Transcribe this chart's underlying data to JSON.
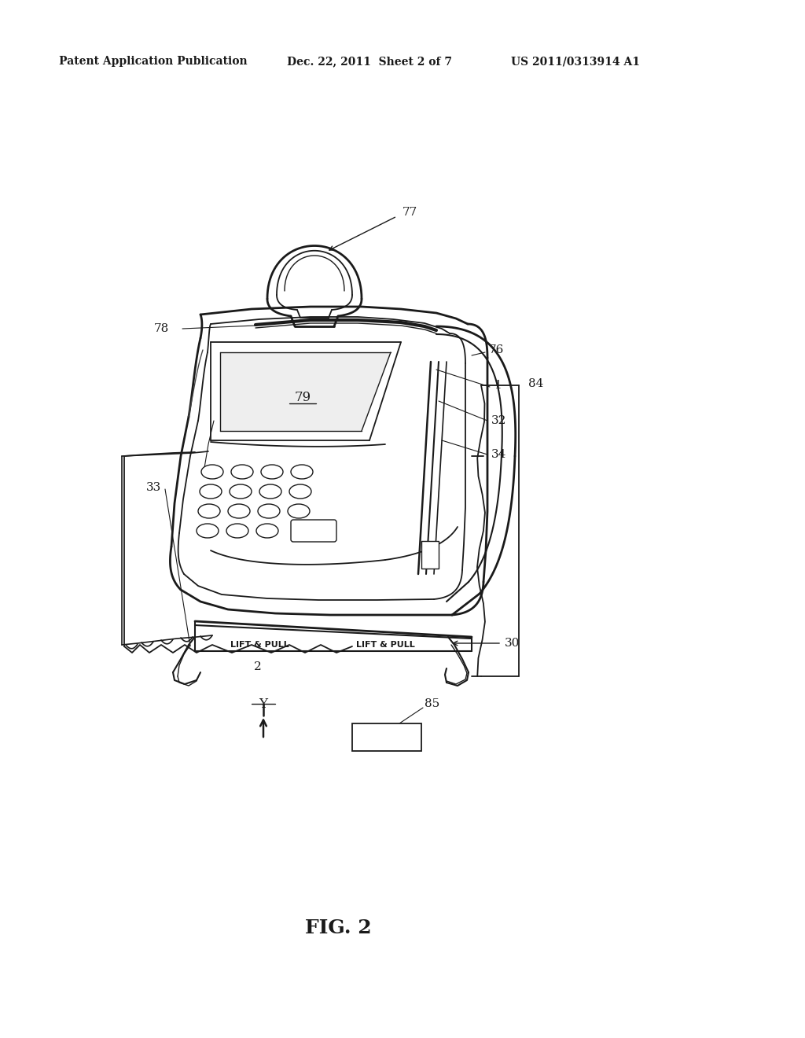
{
  "bg_color": "#ffffff",
  "line_color": "#1a1a1a",
  "header_left": "Patent Application Publication",
  "header_mid": "Dec. 22, 2011  Sheet 2 of 7",
  "header_right": "US 2011/0313914 A1",
  "figure_label": "FIG. 2",
  "fig_w": 10.24,
  "fig_h": 13.2,
  "dpi": 100
}
